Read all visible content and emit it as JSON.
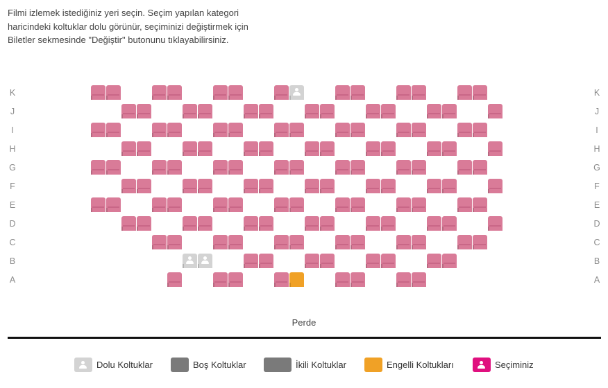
{
  "intro_text": "Filmi izlemek istediğiniz yeri seçin. Seçim yapılan kategori haricindeki koltuklar dolu görünür, seçiminizi değiştirmek için Biletler sekmesinde \"Değiştir\" butonunu tıklayabilirsiniz.",
  "rows": [
    "K",
    "J",
    "I",
    "H",
    "G",
    "F",
    "E",
    "D",
    "C",
    "B",
    "A"
  ],
  "seat_states": {
    "K": [
      "pink",
      "pink",
      "pink",
      "pink",
      "pink",
      "pink",
      "pink",
      "full",
      "pink",
      "pink",
      "pink",
      "pink",
      "pink",
      "pink"
    ],
    "J": [
      "pink",
      "pink",
      "pink",
      "pink",
      "pink",
      "pink",
      "pink",
      "pink",
      "pink",
      "pink",
      "pink",
      "pink",
      "pink"
    ],
    "I": [
      "pink",
      "pink",
      "pink",
      "pink",
      "pink",
      "pink",
      "pink",
      "pink",
      "pink",
      "pink",
      "pink",
      "pink",
      "pink",
      "pink"
    ],
    "H": [
      "pink",
      "pink",
      "pink",
      "pink",
      "pink",
      "pink",
      "pink",
      "pink",
      "pink",
      "pink",
      "pink",
      "pink",
      "pink"
    ],
    "G": [
      "pink",
      "pink",
      "pink",
      "pink",
      "pink",
      "pink",
      "pink",
      "pink",
      "pink",
      "pink",
      "pink",
      "pink",
      "pink",
      "pink"
    ],
    "F": [
      "pink",
      "pink",
      "pink",
      "pink",
      "pink",
      "pink",
      "pink",
      "pink",
      "pink",
      "pink",
      "pink",
      "pink",
      "pink"
    ],
    "E": [
      "pink",
      "pink",
      "pink",
      "pink",
      "pink",
      "pink",
      "pink",
      "pink",
      "pink",
      "pink",
      "pink",
      "pink",
      "pink",
      "pink"
    ],
    "D": [
      "pink",
      "pink",
      "pink",
      "pink",
      "pink",
      "pink",
      "pink",
      "pink",
      "pink",
      "pink",
      "pink",
      "pink",
      "pink"
    ],
    "C": [
      "pink",
      "pink",
      "pink",
      "pink",
      "pink",
      "pink",
      "pink",
      "pink",
      "pink",
      "pink",
      "pink",
      "pink"
    ],
    "B": [
      "full",
      "full",
      "pink",
      "pink",
      "pink",
      "pink",
      "pink",
      "pink",
      "pink",
      "pink"
    ],
    "A": [
      "pink",
      "pink",
      "pink",
      "pink",
      "disabled",
      "pink",
      "pink",
      "pink",
      "pink"
    ]
  },
  "screen_label": "Perde",
  "legend": [
    {
      "label": "Dolu Koltuklar",
      "color": "#d3d3d3",
      "icon": "person-icon"
    },
    {
      "label": "Boş Koltuklar",
      "color": "#7a7a7a",
      "icon": ""
    },
    {
      "label": "İkili Koltuklar",
      "color": "#7a7a7a",
      "icon": ""
    },
    {
      "label": "Engelli Koltukları",
      "color": "#f0a126",
      "icon": ""
    },
    {
      "label": "Seçiminiz",
      "color": "#e0107f",
      "icon": "person-icon"
    }
  ]
}
